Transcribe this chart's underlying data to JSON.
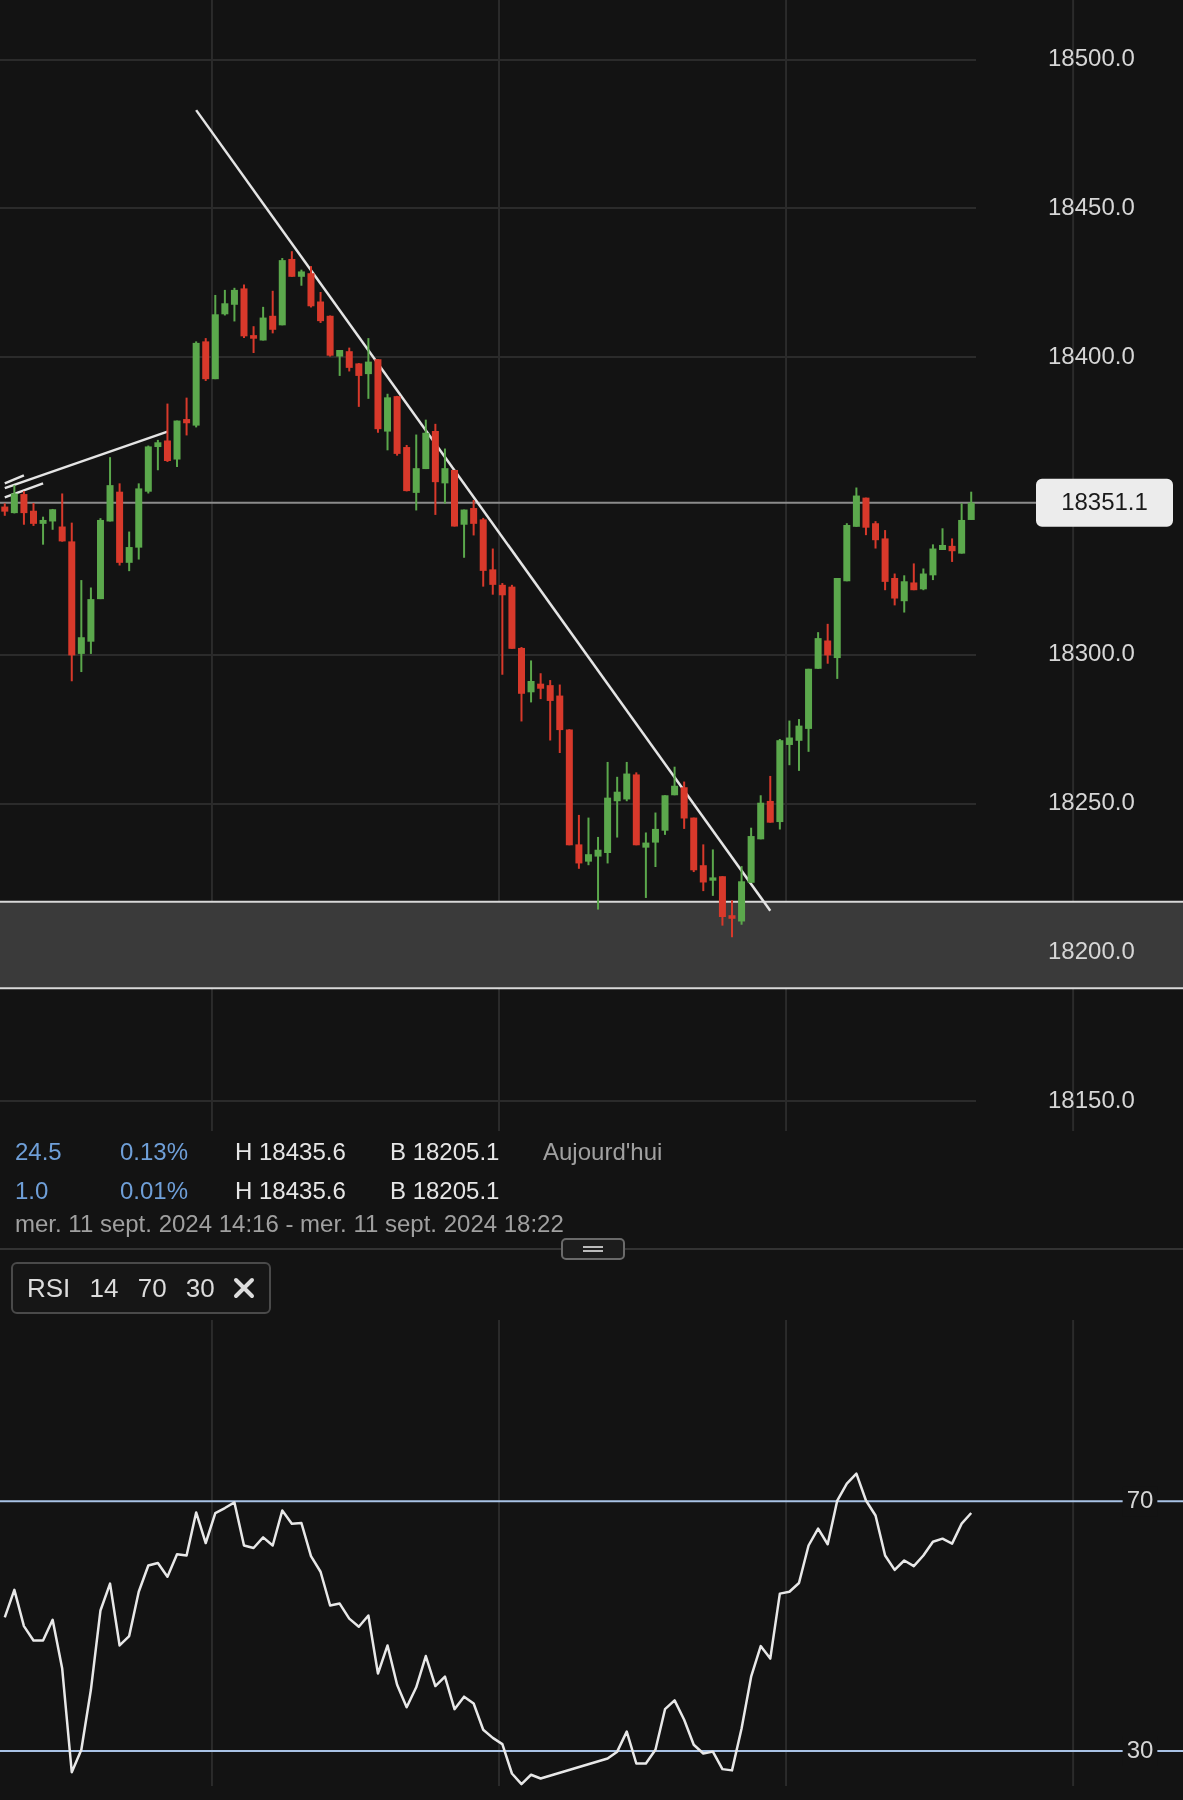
{
  "chart_data": [
    {
      "type": "candlestick",
      "tick_labels": "y",
      "grid": true,
      "marker": "none",
      "categories": [
        null,
        null,
        null,
        null,
        null,
        null,
        null,
        null,
        null,
        null,
        null,
        null,
        null,
        null,
        null,
        null,
        null,
        null,
        null,
        null,
        null,
        null,
        null,
        null,
        null,
        null,
        null,
        null,
        null,
        null,
        null,
        null,
        null,
        null,
        null,
        null,
        null,
        null,
        null,
        null,
        null,
        null,
        null,
        null,
        null,
        null,
        null,
        null,
        null,
        null,
        null,
        null,
        null,
        null,
        null,
        null,
        null,
        null,
        null,
        null,
        null,
        null,
        null,
        null,
        null,
        null,
        null,
        null,
        null,
        null,
        null,
        null,
        null,
        null,
        null,
        null,
        null,
        null,
        null,
        null,
        null,
        null,
        null,
        null,
        null,
        null,
        null,
        null,
        null,
        null,
        null,
        null,
        null,
        null,
        null,
        null,
        null,
        null,
        null,
        null,
        null,
        null
      ],
      "ohlc": [
        [
          18349.8,
          18350.9,
          18346.7,
          18348.1
        ],
        [
          18347.6,
          18357.0,
          18347.5,
          18354.2
        ],
        [
          18354.0,
          18355.0,
          18343.7,
          18347.6
        ],
        [
          18348.4,
          18351.0,
          18343.3,
          18344.0
        ],
        [
          18344.0,
          18346.4,
          18337.0,
          18345.3
        ],
        [
          18344.8,
          18349.0,
          18342.0,
          18348.9
        ],
        [
          18343.1,
          18354.2,
          18338.0,
          18338.1
        ],
        [
          18338.1,
          18344.4,
          18291.1,
          18299.8
        ],
        [
          18300.3,
          18325.1,
          18294.2,
          18305.9
        ],
        [
          18304.4,
          18322.6,
          18300.3,
          18318.7
        ],
        [
          18318.7,
          18345.9,
          18318.7,
          18345.3
        ],
        [
          18344.8,
          18366.4,
          18344.8,
          18357.0
        ],
        [
          18354.8,
          18357.6,
          18330.0,
          18330.9
        ],
        [
          18330.9,
          18341.4,
          18328.1,
          18336.2
        ],
        [
          18336.0,
          18357.6,
          18332.0,
          18355.9
        ],
        [
          18354.8,
          18370.3,
          18354.2,
          18370.0
        ],
        [
          18369.8,
          18372.2,
          18362.0,
          18371.4
        ],
        [
          18372.0,
          18384.4,
          18364.8,
          18365.1
        ],
        [
          18365.6,
          18378.7,
          18363.1,
          18378.7
        ],
        [
          18379.2,
          18386.4,
          18373.7,
          18377.8
        ],
        [
          18377.0,
          18405.3,
          18376.4,
          18404.8
        ],
        [
          18405.3,
          18406.4,
          18392.0,
          18392.6
        ],
        [
          18392.6,
          18420.9,
          18392.6,
          18414.4
        ],
        [
          18414.4,
          18422.6,
          18414.0,
          18418.1
        ],
        [
          18417.6,
          18423.3,
          18412.0,
          18422.6
        ],
        [
          18423.1,
          18424.4,
          18406.4,
          18407.0
        ],
        [
          18407.4,
          18410.4,
          18401.4,
          18406.2
        ],
        [
          18405.6,
          18416.9,
          18405.6,
          18413.3
        ],
        [
          18413.9,
          18422.3,
          18408.0,
          18409.2
        ],
        [
          18410.7,
          18433.3,
          18410.7,
          18432.6
        ],
        [
          18433.0,
          18435.6,
          18427.0,
          18427.0
        ],
        [
          18427.0,
          18429.4,
          18424.0,
          18428.8
        ],
        [
          18428.2,
          18430.6,
          18416.7,
          18417.1
        ],
        [
          18418.7,
          18421.9,
          18411.5,
          18412.1
        ],
        [
          18413.9,
          18414.0,
          18400.2,
          18400.5
        ],
        [
          18400.2,
          18402.4,
          18393.7,
          18402.4
        ],
        [
          18402.0,
          18403.2,
          18395.2,
          18396.4
        ],
        [
          18397.9,
          18398.0,
          18383.3,
          18393.7
        ],
        [
          18394.3,
          18406.4,
          18386.0,
          18398.5
        ],
        [
          18399.3,
          18399.3,
          18374.6,
          18375.8
        ],
        [
          18375.0,
          18387.7,
          18368.7,
          18386.5
        ],
        [
          18386.9,
          18387.0,
          18366.9,
          18367.5
        ],
        [
          18369.8,
          18370.5,
          18354.9,
          18355.0
        ],
        [
          18354.4,
          18374.0,
          18348.5,
          18362.7
        ],
        [
          18362.4,
          18379.0,
          18362.4,
          18374.6
        ],
        [
          18375.2,
          18377.6,
          18347.0,
          18358.0
        ],
        [
          18357.6,
          18369.3,
          18350.8,
          18362.7
        ],
        [
          18362.1,
          18362.1,
          18343.1,
          18343.1
        ],
        [
          18343.7,
          18348.8,
          18332.6,
          18348.8
        ],
        [
          18349.3,
          18352.0,
          18340.1,
          18344.0
        ],
        [
          18345.5,
          18346.0,
          18322.9,
          18328.2
        ],
        [
          18328.7,
          18335.7,
          18320.2,
          18323.5
        ],
        [
          18323.5,
          18324.1,
          18293.3,
          18320.0
        ],
        [
          18322.9,
          18323.5,
          18302.0,
          18302.0
        ],
        [
          18302.3,
          18302.6,
          18277.6,
          18286.9
        ],
        [
          18287.4,
          18298.1,
          18284.0,
          18291.2
        ],
        [
          18290.3,
          18293.8,
          18285.1,
          18288.6
        ],
        [
          18289.8,
          18291.5,
          18271.2,
          18284.5
        ],
        [
          18286.3,
          18290.0,
          18267.0,
          18274.7
        ],
        [
          18274.9,
          18275.0,
          18236.0,
          18236.0
        ],
        [
          18236.3,
          18246.2,
          18228.1,
          18229.9
        ],
        [
          18230.5,
          18245.3,
          18229.3,
          18233.0
        ],
        [
          18232.2,
          18238.8,
          18214.4,
          18234.5
        ],
        [
          18233.4,
          18264.0,
          18229.9,
          18252.0
        ],
        [
          18250.8,
          18259.0,
          18238.6,
          18254.0
        ],
        [
          18251.4,
          18264.0,
          18250.8,
          18260.1
        ],
        [
          18259.8,
          18260.5,
          18236.0,
          18236.0
        ],
        [
          18235.2,
          18240.3,
          18218.3,
          18236.9
        ],
        [
          18236.9,
          18247.0,
          18228.7,
          18241.5
        ],
        [
          18240.9,
          18252.8,
          18239.5,
          18252.8
        ],
        [
          18252.8,
          18262.4,
          18252.8,
          18256.0
        ],
        [
          18255.5,
          18257.4,
          18241.5,
          18245.0
        ],
        [
          18245.3,
          18245.3,
          18227.0,
          18227.6
        ],
        [
          18229.3,
          18236.3,
          18220.6,
          18223.5
        ],
        [
          18224.1,
          18234.6,
          18219.0,
          18225.2
        ],
        [
          18225.6,
          18225.6,
          18209.0,
          18211.9
        ],
        [
          18212.5,
          18217.5,
          18205.1,
          18211.3
        ],
        [
          18210.4,
          18229.0,
          18209.3,
          18223.9
        ],
        [
          18223.4,
          18241.9,
          18223.4,
          18239.1
        ],
        [
          18238.0,
          18252.8,
          18238.0,
          18250.3
        ],
        [
          18250.9,
          18259.3,
          18243.6,
          18243.6
        ],
        [
          18243.8,
          18271.7,
          18241.3,
          18271.3
        ],
        [
          18269.7,
          18277.9,
          18262.9,
          18272.2
        ],
        [
          18271.1,
          18278.4,
          18261.0,
          18276.2
        ],
        [
          18275.1,
          18295.3,
          18267.4,
          18295.3
        ],
        [
          18295.3,
          18307.6,
          18295.3,
          18305.6
        ],
        [
          18304.8,
          18310.4,
          18297.0,
          18299.8
        ],
        [
          18298.9,
          18325.8,
          18291.9,
          18325.8
        ],
        [
          18324.7,
          18344.2,
          18324.7,
          18343.6
        ],
        [
          18343.0,
          18356.2,
          18343.0,
          18353.5
        ],
        [
          18352.8,
          18352.8,
          18340.2,
          18342.7
        ],
        [
          18344.2,
          18344.9,
          18335.7,
          18338.5
        ],
        [
          18339.1,
          18341.9,
          18321.7,
          18324.5
        ],
        [
          18325.8,
          18327.3,
          18316.6,
          18318.9
        ],
        [
          18318.0,
          18326.7,
          18314.2,
          18324.7
        ],
        [
          18324.3,
          18330.7,
          18321.7,
          18321.7
        ],
        [
          18322.0,
          18329.0,
          18321.7,
          18327.3
        ],
        [
          18326.7,
          18337.1,
          18325.1,
          18335.7
        ],
        [
          18335.2,
          18342.5,
          18335.2,
          18336.9
        ],
        [
          18336.6,
          18339.1,
          18331.2,
          18334.8
        ],
        [
          18334.0,
          18350.9,
          18334.0,
          18345.3
        ],
        [
          18345.3,
          18354.8,
          18345.3,
          18351.1
        ]
      ],
      "colors": [
        "#d8392b",
        "#5ba84c",
        "#d8392b",
        "#d8392b",
        "#5ba84c",
        "#5ba84c",
        "#d8392b",
        "#d8392b",
        "#5ba84c",
        "#5ba84c",
        "#5ba84c",
        "#5ba84c",
        "#d8392b",
        "#5ba84c",
        "#5ba84c",
        "#5ba84c",
        "#5ba84c",
        "#d8392b",
        "#5ba84c",
        "#d8392b",
        "#5ba84c",
        "#d8392b",
        "#5ba84c",
        "#5ba84c",
        "#5ba84c",
        "#d8392b",
        "#d8392b",
        "#5ba84c",
        "#d8392b",
        "#5ba84c",
        "#d8392b",
        "#5ba84c",
        "#d8392b",
        "#d8392b",
        "#d8392b",
        "#5ba84c",
        "#d8392b",
        "#d8392b",
        "#5ba84c",
        "#d8392b",
        "#5ba84c",
        "#d8392b",
        "#d8392b",
        "#5ba84c",
        "#5ba84c",
        "#d8392b",
        "#5ba84c",
        "#d8392b",
        "#5ba84c",
        "#d8392b",
        "#d8392b",
        "#d8392b",
        "#d8392b",
        "#d8392b",
        "#d8392b",
        "#5ba84c",
        "#d8392b",
        "#d8392b",
        "#d8392b",
        "#d8392b",
        "#d8392b",
        "#5ba84c",
        "#5ba84c",
        "#5ba84c",
        "#5ba84c",
        "#5ba84c",
        "#d8392b",
        "#5ba84c",
        "#5ba84c",
        "#5ba84c",
        "#5ba84c",
        "#d8392b",
        "#d8392b",
        "#d8392b",
        "#5ba84c",
        "#d8392b",
        "#d8392b",
        "#5ba84c",
        "#5ba84c",
        "#5ba84c",
        "#d8392b",
        "#5ba84c",
        "#5ba84c",
        "#5ba84c",
        "#5ba84c",
        "#5ba84c",
        "#d8392b",
        "#5ba84c",
        "#5ba84c",
        "#5ba84c",
        "#d8392b",
        "#d8392b",
        "#d8392b",
        "#d8392b",
        "#5ba84c",
        "#d8392b",
        "#5ba84c",
        "#5ba84c",
        "#5ba84c",
        "#d8392b",
        "#5ba84c",
        "#5ba84c"
      ],
      "series": [
        {
          "type": "line",
          "color": "#e4e4e4",
          "values": [
            null,
            null,
            null,
            null,
            null,
            null,
            null,
            null,
            null,
            null,
            null,
            null,
            null,
            null,
            null,
            null,
            null,
            null,
            null,
            null,
            18483,
            null,
            null,
            null,
            null,
            null,
            null,
            null,
            null,
            null,
            null,
            null,
            null,
            null,
            null,
            null,
            null,
            null,
            null,
            null,
            null,
            null,
            null,
            null,
            null,
            null,
            null,
            null,
            null,
            null,
            null,
            null,
            null,
            null,
            null,
            null,
            null,
            null,
            null,
            null,
            null,
            null,
            null,
            null,
            null,
            null,
            null,
            null,
            null,
            null,
            null,
            null,
            null,
            null,
            null,
            null,
            null,
            null,
            null,
            null,
            18214,
            null,
            null,
            null,
            null,
            null,
            null,
            null,
            null,
            null,
            null,
            null,
            null,
            null,
            null,
            null,
            null,
            null,
            null,
            null,
            null,
            null
          ]
        },
        {
          "type": "line",
          "color": "#e4e4e4",
          "values": [
            18356,
            null,
            null,
            null,
            null,
            null,
            null,
            null,
            null,
            null,
            null,
            null,
            null,
            null,
            null,
            null,
            null,
            18375,
            null,
            null,
            null,
            null,
            null,
            null,
            null,
            null,
            null,
            null,
            null,
            null,
            null,
            null,
            null,
            null,
            null,
            null,
            null,
            null,
            null,
            null,
            null,
            null,
            null,
            null,
            null,
            null,
            null,
            null,
            null,
            null,
            null,
            null,
            null,
            null,
            null,
            null,
            null,
            null,
            null,
            null,
            null,
            null,
            null,
            null,
            null,
            null,
            null,
            null,
            null,
            null,
            null,
            null,
            null,
            null,
            null,
            null,
            null,
            null,
            null,
            null,
            null,
            null,
            null,
            null,
            null,
            null,
            null,
            null,
            null,
            null,
            null,
            null,
            null,
            null,
            null,
            null,
            null,
            null,
            null,
            null,
            null,
            null
          ]
        },
        {
          "type": "line",
          "color": "#e4e4e4",
          "values": [
            18357.6,
            null,
            18360.3,
            null,
            null,
            null,
            null,
            null,
            null,
            null,
            null,
            null,
            null,
            null,
            null,
            null,
            null,
            null,
            null,
            null,
            null,
            null,
            null,
            null,
            null,
            null,
            null,
            null,
            null,
            null,
            null,
            null,
            null,
            null,
            null,
            null,
            null,
            null,
            null,
            null,
            null,
            null,
            null,
            null,
            null,
            null,
            null,
            null,
            null,
            null,
            null,
            null,
            null,
            null,
            null,
            null,
            null,
            null,
            null,
            null,
            null,
            null,
            null,
            null,
            null,
            null,
            null,
            null,
            null,
            null,
            null,
            null,
            null,
            null,
            null,
            null,
            null,
            null,
            null,
            null,
            null,
            null,
            null,
            null,
            null,
            null,
            null,
            null,
            null,
            null,
            null,
            null,
            null,
            null,
            null,
            null,
            null,
            null,
            null,
            null,
            null,
            null
          ]
        },
        {
          "type": "line",
          "color": "#e4e4e4",
          "values": [
            18352.9,
            null,
            null,
            null,
            18357.6,
            null,
            null,
            null,
            null,
            null,
            null,
            null,
            null,
            null,
            null,
            null,
            null,
            null,
            null,
            null,
            null,
            null,
            null,
            null,
            null,
            null,
            null,
            null,
            null,
            null,
            null,
            null,
            null,
            null,
            null,
            null,
            null,
            null,
            null,
            null,
            null,
            null,
            null,
            null,
            null,
            null,
            null,
            null,
            null,
            null,
            null,
            null,
            null,
            null,
            null,
            null,
            null,
            null,
            null,
            null,
            null,
            null,
            null,
            null,
            null,
            null,
            null,
            null,
            null,
            null,
            null,
            null,
            null,
            null,
            null,
            null,
            null,
            null,
            null,
            null,
            null,
            null,
            null,
            null,
            null,
            null,
            null,
            null,
            null,
            null,
            null,
            null,
            null,
            null,
            null,
            null,
            null,
            null,
            null,
            null,
            null,
            null
          ]
        }
      ],
      "ylim": [
        18140,
        18520
      ],
      "yticks": [
        {
          "value": 18150,
          "label": "18150.0"
        },
        {
          "value": 18200,
          "label": "18200.0"
        },
        {
          "value": 18250,
          "label": "18250.0"
        },
        {
          "value": 18300,
          "label": "18300.0"
        },
        {
          "value": 18400,
          "label": "18400.0"
        },
        {
          "value": 18450,
          "label": "18450.0"
        },
        {
          "value": 18500,
          "label": "18500.0"
        }
      ],
      "ref_lines": [
        {
          "axis": "y",
          "value": 18351.1,
          "label": "18351.1",
          "color": "#8c8c8c"
        },
        {
          "axis": "y",
          "value": 18217,
          "color": "#d8d8d8"
        },
        {
          "axis": "y",
          "value": 18188,
          "color": "#d8d8d8"
        }
      ],
      "bands": [
        {
          "axis": "y",
          "from": 18188,
          "to": 18217,
          "color": "#3a3a3a"
        }
      ],
      "annotations": [
        "24.5",
        "0.13%",
        "H 18435.6",
        "B 18205.1",
        "Aujourd'hui",
        "1.0",
        "0.01%",
        "H 18435.6",
        "B 18205.1",
        "mer. 11 sept. 2024 14:16 - mer. 11 sept. 2024 18:22"
      ]
    },
    {
      "type": "line",
      "title": "RSI 14 70 30",
      "tick_labels": "y",
      "grid": "x",
      "marker": "none",
      "categories": [
        null,
        null,
        null,
        null,
        null,
        null,
        null,
        null,
        null,
        null,
        null,
        null,
        null,
        null,
        null,
        null,
        null,
        null,
        null,
        null,
        null,
        null,
        null,
        null,
        null,
        null,
        null,
        null,
        null,
        null,
        null,
        null,
        null,
        null,
        null,
        null,
        null,
        null,
        null,
        null,
        null,
        null,
        null,
        null,
        null,
        null,
        null,
        null,
        null,
        null,
        null,
        null,
        null,
        null,
        null,
        null,
        null,
        null,
        null,
        null,
        null,
        null,
        null,
        null,
        null,
        null,
        null,
        null,
        null,
        null,
        null,
        null,
        null,
        null,
        null,
        null,
        null,
        null,
        null,
        null,
        null,
        null,
        null,
        null,
        null,
        null,
        null,
        null,
        null,
        null,
        null,
        null,
        null,
        null,
        null,
        null,
        null,
        null,
        null,
        null,
        null,
        null
      ],
      "series": [
        {
          "color": "#e8e8e8",
          "values": [
            51.4,
            55.8,
            50.0,
            47.7,
            47.7,
            51.0,
            43.2,
            26.6,
            30.2,
            39.8,
            52.5,
            56.8,
            46.9,
            48.4,
            55.5,
            59.7,
            60.1,
            57.9,
            61.5,
            61.3,
            68.2,
            63.3,
            68.1,
            68.9,
            69.8,
            62.9,
            62.5,
            64.2,
            62.9,
            68.5,
            66.4,
            66.5,
            61.2,
            58.7,
            53.3,
            53.6,
            51.2,
            49.9,
            51.7,
            42.4,
            46.9,
            40.6,
            37.0,
            40.2,
            45.2,
            40.4,
            41.9,
            36.7,
            38.7,
            37.6,
            33.4,
            32.1,
            31.1,
            26.4,
            24.7,
            26.2,
            25.6,
            null,
            null,
            null,
            null,
            null,
            null,
            28.8,
            29.9,
            33.1,
            28.0,
            28.0,
            30.2,
            36.7,
            38.1,
            35.0,
            31.0,
            29.6,
            29.9,
            27.1,
            26.9,
            33.6,
            41.9,
            46.8,
            44.8,
            55.2,
            55.5,
            56.9,
            62.9,
            65.6,
            63.1,
            70.1,
            72.8,
            74.4,
            70.1,
            67.7,
            61.3,
            59.0,
            60.5,
            59.6,
            61.3,
            63.5,
            64.0,
            63.2,
            66.4,
            68.1
          ]
        }
      ],
      "ylim": [
        24.4,
        99
      ],
      "yticks": [
        70,
        30
      ],
      "ref_lines": [
        {
          "axis": "y",
          "value": 70,
          "color": "#a9c3e6"
        },
        {
          "axis": "y",
          "value": 30,
          "color": "#a9c3e6"
        }
      ]
    }
  ]
}
